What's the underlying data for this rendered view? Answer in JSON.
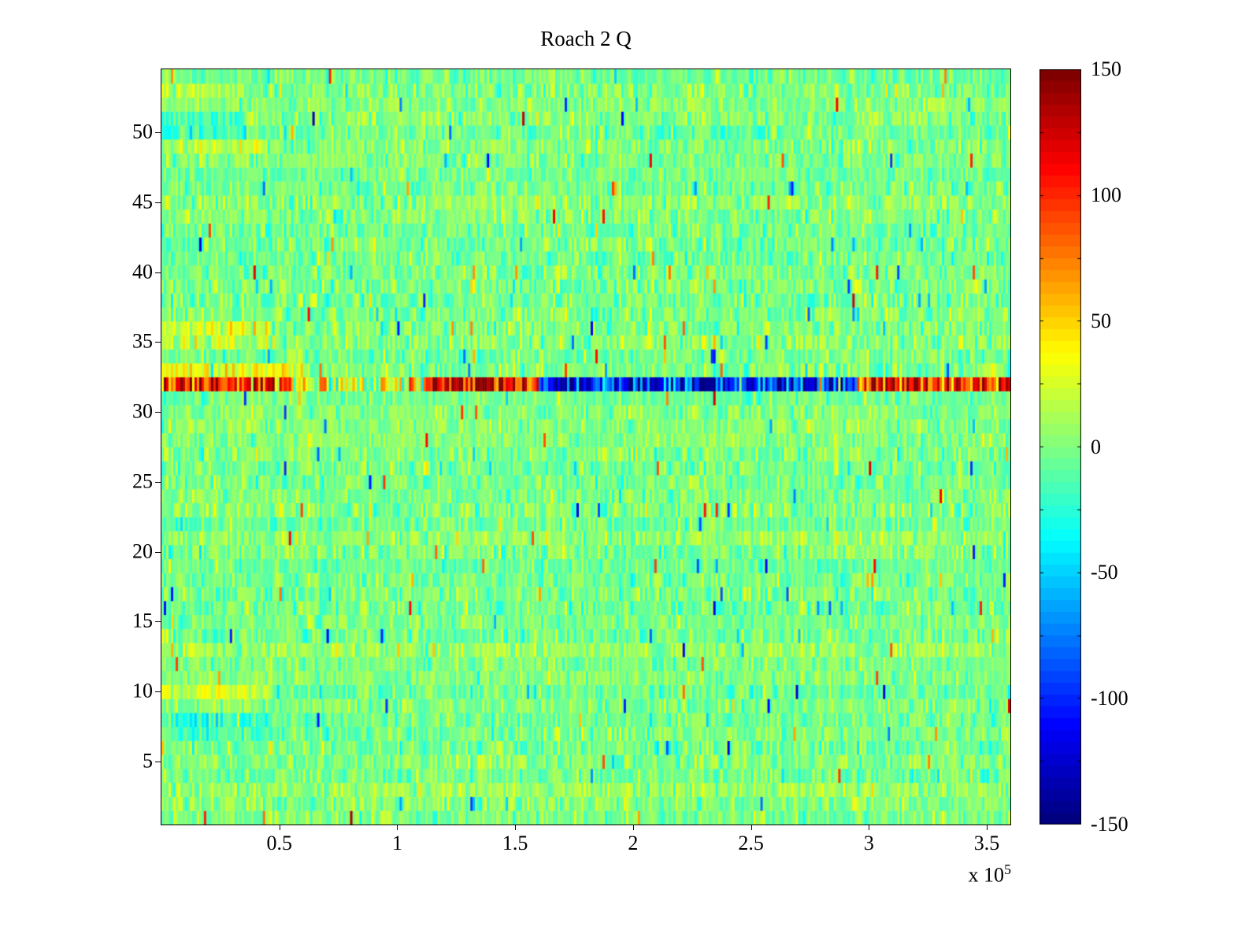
{
  "title": "Roach 2 Q",
  "colors": {
    "background": "#ffffff",
    "axis": "#000000"
  },
  "chart_data": {
    "type": "heatmap",
    "title": "Roach 2 Q",
    "colormap": "jet",
    "quantization_levels": 64,
    "x_range": [
      0,
      360000
    ],
    "y_range": [
      1,
      54
    ],
    "rows": 54,
    "cols": 360,
    "value_range": [
      -150,
      150
    ],
    "x_axis": {
      "tick_values": [
        50000,
        100000,
        150000,
        200000,
        250000,
        300000,
        350000
      ],
      "tick_labels": [
        "0.5",
        "1",
        "1.5",
        "2",
        "2.5",
        "3",
        "3.5"
      ]
    },
    "x_multiplier_base": "x 10",
    "x_multiplier_exp": "5",
    "y_axis": {
      "tick_values": [
        5,
        10,
        15,
        20,
        25,
        30,
        35,
        40,
        45,
        50
      ],
      "tick_labels": [
        "5",
        "10",
        "15",
        "20",
        "25",
        "30",
        "35",
        "40",
        "45",
        "50"
      ]
    },
    "colorbar": {
      "range": [
        -150,
        150
      ],
      "tick_values": [
        150,
        100,
        50,
        0,
        -50,
        -100,
        -150
      ],
      "tick_labels": [
        "150",
        "100",
        "50",
        "0",
        "-50",
        "-100",
        "-150"
      ],
      "minor_tick_step": 25,
      "position": "right"
    },
    "noise": {
      "seed": 42,
      "mean": -2,
      "sigma": 13,
      "row_mean_jitter": 4,
      "col_mean_jitter": 3,
      "spike_prob": 0.012,
      "spike_min": 40,
      "spike_max": 110
    },
    "row_effects": [
      {
        "row": 32,
        "sigma": 40,
        "segments": [
          [
            0,
            0.155,
            95
          ],
          [
            0.155,
            0.31,
            25
          ],
          [
            0.31,
            0.445,
            115
          ],
          [
            0.445,
            0.82,
            -105
          ],
          [
            0.82,
            1.0,
            105
          ]
        ]
      },
      {
        "row": 33,
        "sigma": 16,
        "segments": [
          [
            0,
            0.17,
            32
          ]
        ]
      },
      {
        "row": 36,
        "sigma": 14,
        "segments": [
          [
            0,
            0.13,
            24
          ]
        ]
      },
      {
        "row": 35,
        "sigma": 14,
        "segments": [
          [
            0,
            0.13,
            14
          ]
        ]
      },
      {
        "row": 13,
        "sigma": 13,
        "segments": [
          [
            0,
            1.0,
            8
          ]
        ]
      },
      {
        "row": 21,
        "sigma": 13,
        "segments": [
          [
            0,
            1.0,
            6
          ]
        ]
      },
      {
        "row": 3,
        "sigma": 13,
        "segments": [
          [
            0,
            1.0,
            7
          ]
        ]
      },
      {
        "row": 10,
        "sigma": 14,
        "segments": [
          [
            0,
            0.13,
            22
          ]
        ]
      },
      {
        "row": 8,
        "sigma": 14,
        "segments": [
          [
            0.01,
            0.13,
            -24
          ]
        ]
      },
      {
        "row": 7,
        "sigma": 14,
        "segments": [
          [
            0.02,
            0.14,
            -16
          ]
        ]
      },
      {
        "row": 51,
        "sigma": 14,
        "segments": [
          [
            0,
            0.1,
            -20
          ]
        ]
      },
      {
        "row": 50,
        "sigma": 14,
        "segments": [
          [
            0,
            0.1,
            -18
          ]
        ]
      },
      {
        "row": 49,
        "sigma": 14,
        "segments": [
          [
            0.02,
            0.12,
            16
          ]
        ]
      },
      {
        "row": 53,
        "sigma": 14,
        "segments": [
          [
            0,
            0.1,
            14
          ]
        ]
      }
    ]
  }
}
